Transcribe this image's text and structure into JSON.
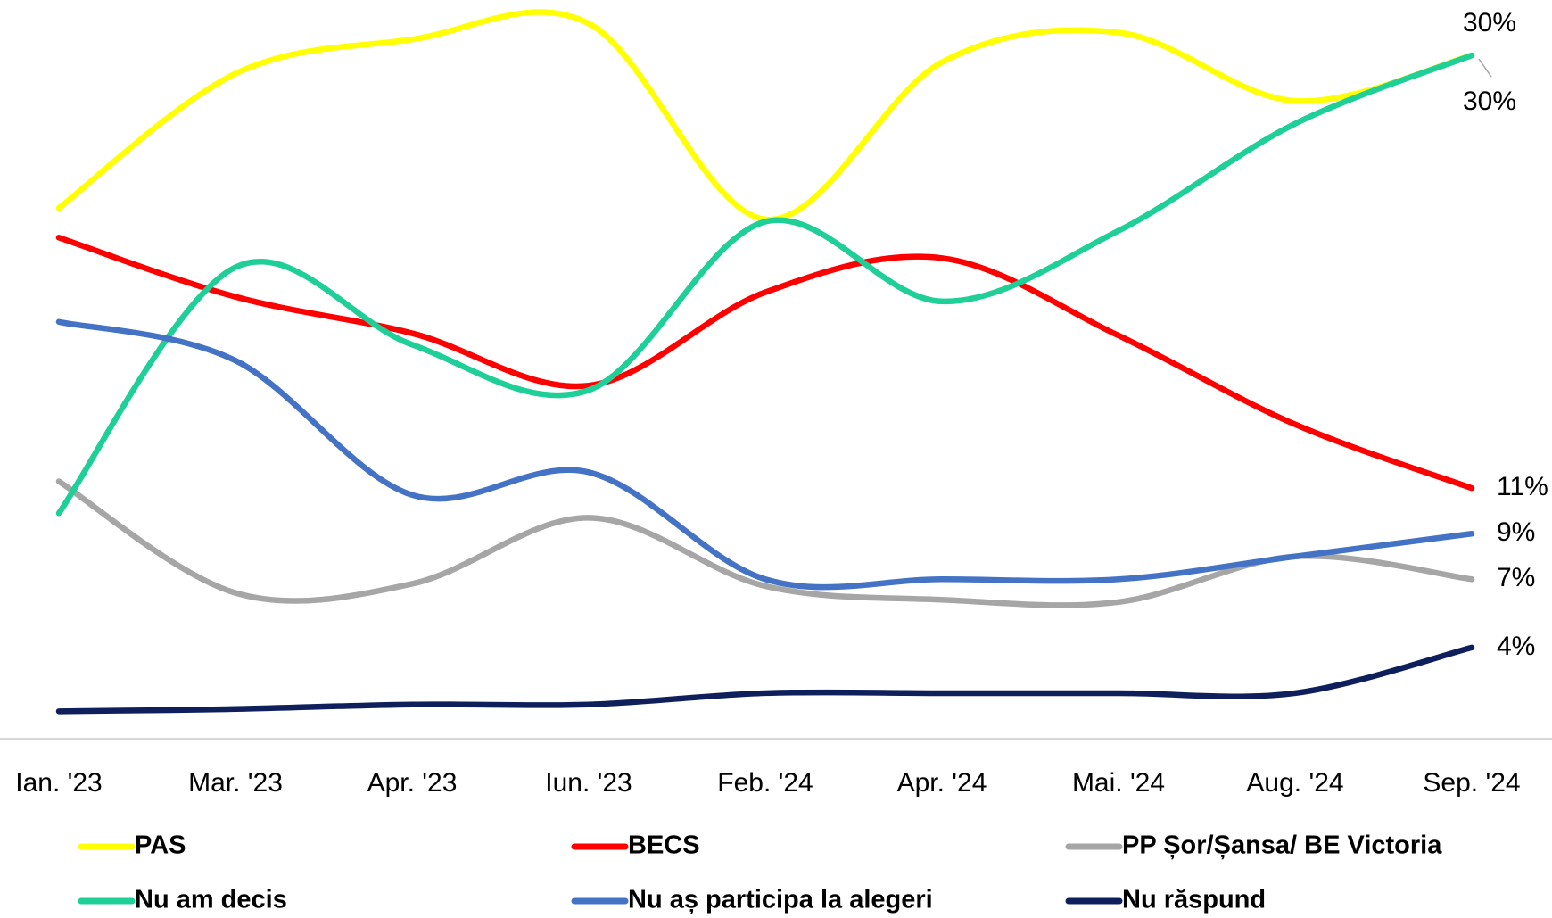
{
  "chart_data": {
    "type": "line",
    "categories": [
      "Ian. '23",
      "Mar. '23",
      "Apr. '23",
      "Iun. '23",
      "Feb. '24",
      "Apr. '24",
      "Mai. '24",
      "Aug. '24",
      "Sep. '24"
    ],
    "ylim": [
      0,
      32
    ],
    "series": [
      {
        "name": "PAS",
        "color": "#ffff00",
        "values": [
          23.3,
          29.2,
          30.7,
          31.4,
          22.8,
          29.7,
          31.0,
          28.0,
          30
        ],
        "value_labels": [
          null,
          null,
          null,
          null,
          null,
          null,
          null,
          null,
          "30%"
        ]
      },
      {
        "name": "BECS",
        "color": "#ff0000",
        "values": [
          22.0,
          19.4,
          17.8,
          15.5,
          19.6,
          21.1,
          17.7,
          13.8,
          11
        ],
        "value_labels": [
          null,
          null,
          null,
          null,
          null,
          null,
          null,
          null,
          "11%"
        ]
      },
      {
        "name": "PP Șor/Șansa/ BE Victoria",
        "color": "#a6a6a6",
        "values": [
          11.3,
          6.4,
          6.8,
          9.7,
          6.7,
          6.1,
          6.0,
          8.0,
          7
        ],
        "value_labels": [
          null,
          null,
          null,
          null,
          null,
          null,
          null,
          null,
          "7%"
        ]
      },
      {
        "name": "Nu am decis",
        "color": "#1ecf97",
        "values": [
          9.9,
          20.7,
          17.3,
          15.3,
          22.7,
          19.2,
          22.3,
          27.0,
          30
        ],
        "value_labels": [
          null,
          null,
          null,
          null,
          null,
          null,
          null,
          null,
          "30%"
        ]
      },
      {
        "name": "Nu aș participa la alegeri",
        "color": "#4472c4",
        "values": [
          18.3,
          16.6,
          10.7,
          11.7,
          7.0,
          7.0,
          7.0,
          8.0,
          9
        ],
        "value_labels": [
          null,
          null,
          null,
          null,
          null,
          null,
          null,
          null,
          "9%"
        ]
      },
      {
        "name": "Nu răspund",
        "color": "#0e1f5b",
        "values": [
          1.2,
          1.3,
          1.5,
          1.5,
          2.0,
          2.0,
          2.0,
          2.0,
          4
        ],
        "value_labels": [
          null,
          null,
          null,
          null,
          null,
          null,
          null,
          null,
          "4%"
        ]
      }
    ]
  }
}
